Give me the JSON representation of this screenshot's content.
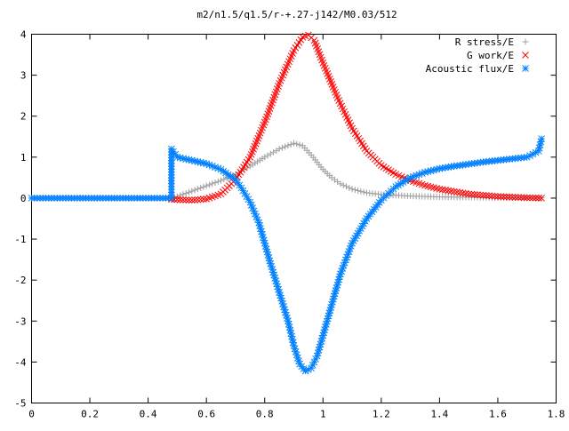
{
  "chart_data": {
    "type": "scatter",
    "title": "m2/n1.5/q1.5/r-+.27-j142/M0.03/512",
    "xlabel": "",
    "ylabel": "",
    "xlim": [
      0,
      1.8
    ],
    "ylim": [
      -5,
      4
    ],
    "x_ticks": [
      0,
      0.2,
      0.4,
      0.6,
      0.8,
      1,
      1.2,
      1.4,
      1.6,
      1.8
    ],
    "x_tick_labels": [
      "0",
      "0.2",
      "0.4",
      "0.6",
      "0.8",
      "1",
      "1.2",
      "1.4",
      "1.6",
      "1.8"
    ],
    "y_ticks": [
      -5,
      -4,
      -3,
      -2,
      -1,
      0,
      1,
      2,
      3,
      4
    ],
    "y_tick_labels": [
      "-5",
      "-4",
      "-3",
      "-2",
      "-1",
      "0",
      "1",
      "2",
      "3",
      "4"
    ],
    "grid": false,
    "legend_position": "top-right",
    "series": [
      {
        "name": "R stress/E",
        "color": "#a0a0a0",
        "marker": "plus",
        "x": [
          0,
          0.48,
          0.5,
          0.55,
          0.6,
          0.65,
          0.7,
          0.75,
          0.8,
          0.85,
          0.9,
          0.93,
          0.96,
          1.0,
          1.03,
          1.06,
          1.1,
          1.15,
          1.2,
          1.3,
          1.4,
          1.5,
          1.6,
          1.7,
          1.75
        ],
        "y": [
          0,
          0,
          0.04,
          0.17,
          0.3,
          0.43,
          0.58,
          0.78,
          1.0,
          1.2,
          1.34,
          1.28,
          1.05,
          0.7,
          0.5,
          0.35,
          0.22,
          0.13,
          0.09,
          0.05,
          0.03,
          0.02,
          0.01,
          0.01,
          0.01
        ]
      },
      {
        "name": "G work/E",
        "color": "#ff0000",
        "marker": "cross",
        "x": [
          0.48,
          0.55,
          0.6,
          0.65,
          0.7,
          0.75,
          0.8,
          0.85,
          0.9,
          0.93,
          0.95,
          0.97,
          1.0,
          1.05,
          1.1,
          1.15,
          1.2,
          1.25,
          1.3,
          1.35,
          1.4,
          1.5,
          1.6,
          1.7,
          1.75
        ],
        "y": [
          -0.03,
          -0.05,
          -0.02,
          0.1,
          0.45,
          1.0,
          1.85,
          2.8,
          3.6,
          3.93,
          3.98,
          3.85,
          3.3,
          2.45,
          1.7,
          1.15,
          0.8,
          0.58,
          0.43,
          0.31,
          0.22,
          0.1,
          0.04,
          0.01,
          0.0
        ]
      },
      {
        "name": "Acoustic flux/E",
        "color": "#0080ff",
        "marker": "star",
        "x": [
          0,
          0.48,
          0.48,
          0.5,
          0.55,
          0.6,
          0.65,
          0.7,
          0.72,
          0.75,
          0.78,
          0.8,
          0.82,
          0.85,
          0.88,
          0.9,
          0.92,
          0.94,
          0.96,
          0.98,
          1.0,
          1.03,
          1.06,
          1.1,
          1.15,
          1.2,
          1.25,
          1.3,
          1.35,
          1.4,
          1.45,
          1.5,
          1.55,
          1.6,
          1.65,
          1.7,
          1.74,
          1.75
        ],
        "y": [
          0,
          0,
          1.2,
          1.0,
          0.92,
          0.84,
          0.7,
          0.45,
          0.25,
          -0.1,
          -0.6,
          -1.1,
          -1.6,
          -2.3,
          -3.0,
          -3.6,
          -4.05,
          -4.22,
          -4.15,
          -3.85,
          -3.35,
          -2.6,
          -1.85,
          -1.1,
          -0.5,
          -0.05,
          0.28,
          0.5,
          0.63,
          0.72,
          0.78,
          0.83,
          0.88,
          0.92,
          0.96,
          1.0,
          1.15,
          1.45
        ]
      }
    ]
  }
}
